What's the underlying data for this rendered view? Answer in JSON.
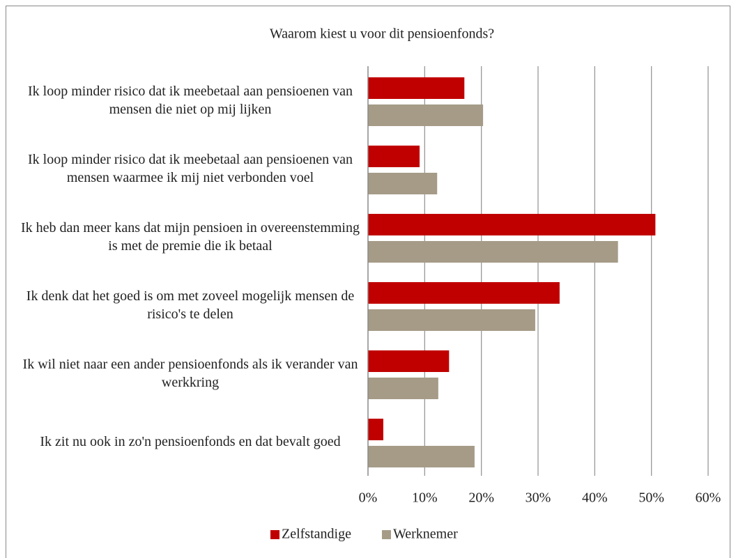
{
  "chart_data": {
    "type": "hbar",
    "title": "Waarom kiest u voor dit pensioenfonds?",
    "categories": [
      "Ik loop minder risico dat ik meebetaal aan pensioenen van mensen die niet op mij lijken",
      "Ik loop minder risico dat ik meebetaal aan pensioenen van mensen waarmee ik mij niet verbonden voel",
      "Ik heb dan meer kans dat mijn pensioen in overeenstemming is met de premie die ik betaal",
      "Ik denk dat het goed is om met zoveel mogelijk mensen de risico's te delen",
      "Ik wil niet naar een ander pensioenfonds als ik verander van werkkring",
      "Ik zit nu ook in zo'n pensioenfonds en dat bevalt goed"
    ],
    "series": [
      {
        "name": "Zelfstandige",
        "color": "#c00000",
        "values": [
          17,
          9.1,
          50.7,
          33.8,
          14.3,
          2.7
        ]
      },
      {
        "name": "Werknemer",
        "color": "#a59b87",
        "values": [
          20.3,
          12.2,
          44.1,
          29.5,
          12.4,
          18.8
        ]
      }
    ],
    "xlim": [
      0,
      60
    ],
    "xticks": [
      {
        "value": 0,
        "label": "0%"
      },
      {
        "value": 10,
        "label": "10%"
      },
      {
        "value": 20,
        "label": "20%"
      },
      {
        "value": 30,
        "label": "30%"
      },
      {
        "value": 40,
        "label": "40%"
      },
      {
        "value": 50,
        "label": "50%"
      },
      {
        "value": 60,
        "label": "60%"
      }
    ],
    "grid": true,
    "legend": "bottom"
  }
}
